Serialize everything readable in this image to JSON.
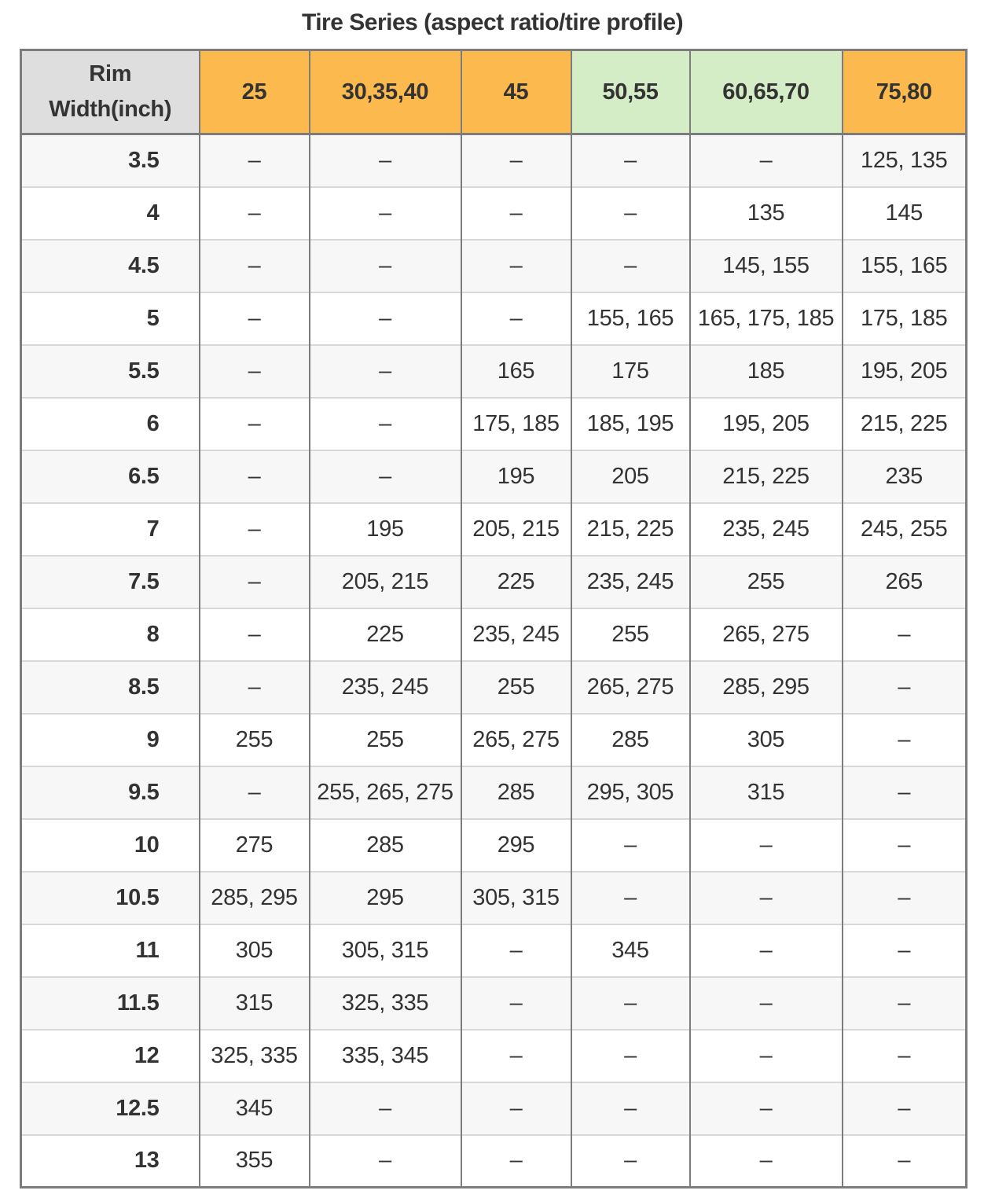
{
  "title": "Tire Series (aspect ratio/tire profile)",
  "colors": {
    "header_orange": "#fcba4e",
    "header_green": "#d4edc6",
    "corner_bg": "#dedede",
    "row_alt": "#f7f7f7",
    "border_dark": "#7c7c7c",
    "border_light": "#d8d8d8",
    "text": "#333333"
  },
  "table": {
    "corner_line1": "Rim",
    "corner_line2": "Width(inch)",
    "columns": [
      {
        "label": "25",
        "tone": "orange"
      },
      {
        "label": "30,35,40",
        "tone": "orange"
      },
      {
        "label": "45",
        "tone": "orange"
      },
      {
        "label": "50,55",
        "tone": "green"
      },
      {
        "label": "60,65,70",
        "tone": "green"
      },
      {
        "label": "75,80",
        "tone": "orange"
      }
    ],
    "rows": [
      {
        "rim": "3.5",
        "cells": [
          "–",
          "–",
          "–",
          "–",
          "–",
          "125, 135"
        ]
      },
      {
        "rim": "4",
        "cells": [
          "–",
          "–",
          "–",
          "–",
          "135",
          "145"
        ]
      },
      {
        "rim": "4.5",
        "cells": [
          "–",
          "–",
          "–",
          "–",
          "145, 155",
          "155, 165"
        ]
      },
      {
        "rim": "5",
        "cells": [
          "–",
          "–",
          "–",
          "155, 165",
          "165, 175, 185",
          "175, 185"
        ]
      },
      {
        "rim": "5.5",
        "cells": [
          "–",
          "–",
          "165",
          "175",
          "185",
          "195, 205"
        ]
      },
      {
        "rim": "6",
        "cells": [
          "–",
          "–",
          "175, 185",
          "185, 195",
          "195, 205",
          "215, 225"
        ]
      },
      {
        "rim": "6.5",
        "cells": [
          "–",
          "–",
          "195",
          "205",
          "215, 225",
          "235"
        ]
      },
      {
        "rim": "7",
        "cells": [
          "–",
          "195",
          "205, 215",
          "215, 225",
          "235, 245",
          "245, 255"
        ]
      },
      {
        "rim": "7.5",
        "cells": [
          "–",
          "205, 215",
          "225",
          "235, 245",
          "255",
          "265"
        ]
      },
      {
        "rim": "8",
        "cells": [
          "–",
          "225",
          "235, 245",
          "255",
          "265, 275",
          "–"
        ]
      },
      {
        "rim": "8.5",
        "cells": [
          "–",
          "235, 245",
          "255",
          "265, 275",
          "285, 295",
          "–"
        ]
      },
      {
        "rim": "9",
        "cells": [
          "255",
          "255",
          "265, 275",
          "285",
          "305",
          "–"
        ]
      },
      {
        "rim": "9.5",
        "cells": [
          "–",
          "255, 265, 275",
          "285",
          "295, 305",
          "315",
          "–"
        ]
      },
      {
        "rim": "10",
        "cells": [
          "275",
          "285",
          "295",
          "–",
          "–",
          "–"
        ]
      },
      {
        "rim": "10.5",
        "cells": [
          "285, 295",
          "295",
          "305, 315",
          "–",
          "–",
          "–"
        ]
      },
      {
        "rim": "11",
        "cells": [
          "305",
          "305, 315",
          "–",
          "345",
          "–",
          "–"
        ]
      },
      {
        "rim": "11.5",
        "cells": [
          "315",
          "325, 335",
          "–",
          "–",
          "–",
          "–"
        ]
      },
      {
        "rim": "12",
        "cells": [
          "325, 335",
          "335, 345",
          "–",
          "–",
          "–",
          "–"
        ]
      },
      {
        "rim": "12.5",
        "cells": [
          "345",
          "–",
          "–",
          "–",
          "–",
          "–"
        ]
      },
      {
        "rim": "13",
        "cells": [
          "355",
          "–",
          "–",
          "–",
          "–",
          "–"
        ]
      }
    ]
  }
}
